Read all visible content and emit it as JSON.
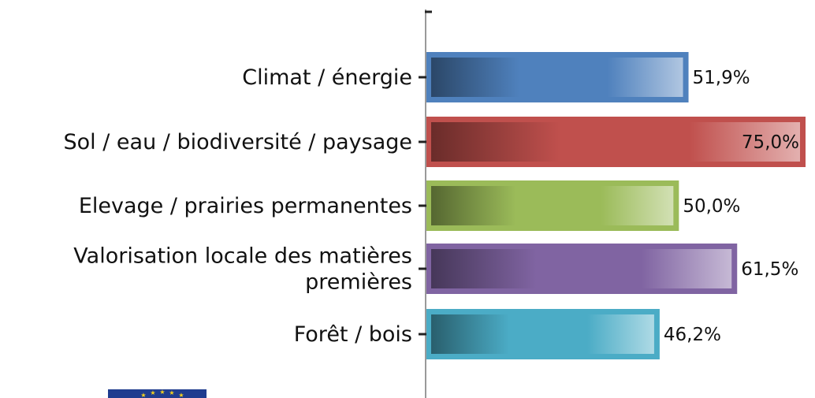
{
  "chart_data": {
    "type": "bar",
    "orientation": "horizontal",
    "categories": [
      [
        "Climat / énergie"
      ],
      [
        "Sol / eau / biodiversité / paysage"
      ],
      [
        "Elevage / prairies permanentes"
      ],
      [
        "Valorisation locale des matières",
        "premières"
      ],
      [
        "Forêt / bois"
      ]
    ],
    "values": [
      51.9,
      75.0,
      50.0,
      61.5,
      46.2
    ],
    "value_labels": [
      "51,9%",
      "75,0%",
      "50,0%",
      "61,5%",
      "46,2%"
    ],
    "colors": [
      "#4f81bd",
      "#c0504d",
      "#9bbb59",
      "#8064a2",
      "#4bacc6"
    ],
    "xlim": [
      0,
      75
    ],
    "title": "",
    "xlabel": "",
    "ylabel": "",
    "grid": false,
    "legend": "none"
  },
  "logo": {
    "name": "eu-flag-logo"
  }
}
